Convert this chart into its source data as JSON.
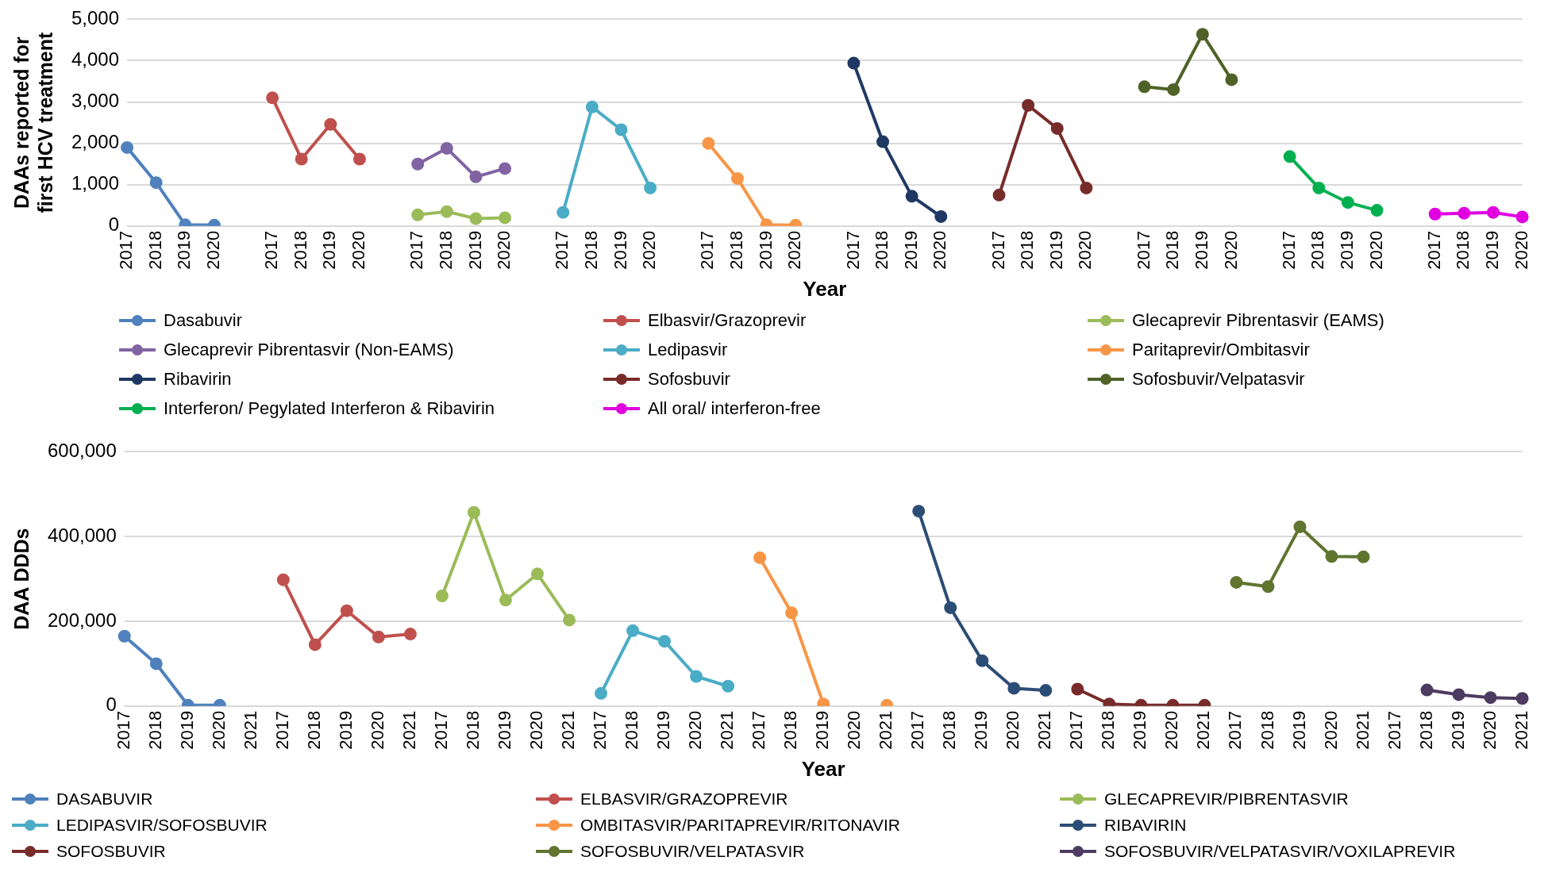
{
  "chart_data": [
    {
      "type": "line",
      "xlabel": "Year",
      "ylabel": "DAAs reported for first HCV treatment",
      "marker": "circle",
      "grid": "y",
      "legend": "bottom",
      "categories": [
        "2017",
        "2018",
        "2019",
        "2020",
        null,
        "2017",
        "2018",
        "2019",
        "2020",
        null,
        "2017",
        "2018",
        "2019",
        "2020",
        null,
        "2017",
        "2018",
        "2019",
        "2020",
        null,
        "2017",
        "2018",
        "2019",
        "2020",
        null,
        "2017",
        "2018",
        "2019",
        "2020",
        null,
        "2017",
        "2018",
        "2019",
        "2020",
        null,
        "2017",
        "2018",
        "2019",
        "2020",
        null,
        "2017",
        "2018",
        "2019",
        "2020",
        null,
        "2017",
        "2018",
        "2019",
        "2020"
      ],
      "ylim": [
        0,
        5000
      ],
      "yticks": [
        0,
        {
          "value": 1000,
          "label": "1,000"
        },
        {
          "value": 2000,
          "label": "2,000"
        },
        {
          "value": 3000,
          "label": "3,000"
        },
        {
          "value": 4000,
          "label": "4,000"
        },
        {
          "value": 5000,
          "label": "5,000"
        }
      ],
      "series": [
        {
          "name": "Dasabuvir",
          "color": "#4f81bd",
          "values": [
            1900,
            1050,
            30,
            20,
            null,
            null,
            null,
            null,
            null,
            null,
            null,
            null,
            null,
            null,
            null,
            null,
            null,
            null,
            null,
            null,
            null,
            null,
            null,
            null,
            null,
            null,
            null,
            null,
            null,
            null,
            null,
            null,
            null,
            null,
            null,
            null,
            null,
            null,
            null,
            null,
            null,
            null,
            null,
            null,
            null,
            null,
            null,
            null,
            null
          ]
        },
        {
          "name": "Elbasvir/Grazoprevir",
          "color": "#c0504d",
          "values": [
            null,
            null,
            null,
            null,
            null,
            3100,
            1620,
            2460,
            1620,
            null,
            null,
            null,
            null,
            null,
            null,
            null,
            null,
            null,
            null,
            null,
            null,
            null,
            null,
            null,
            null,
            null,
            null,
            null,
            null,
            null,
            null,
            null,
            null,
            null,
            null,
            null,
            null,
            null,
            null,
            null,
            null,
            null,
            null,
            null,
            null,
            null,
            null,
            null,
            null
          ]
        },
        {
          "name": "Glecaprevir Pibrentasvir (EAMS)",
          "color": "#9bbb59",
          "values": [
            null,
            null,
            null,
            null,
            null,
            null,
            null,
            null,
            null,
            null,
            270,
            350,
            180,
            200,
            null,
            null,
            null,
            null,
            null,
            null,
            null,
            null,
            null,
            null,
            null,
            null,
            null,
            null,
            null,
            null,
            null,
            null,
            null,
            null,
            null,
            null,
            null,
            null,
            null,
            null,
            null,
            null,
            null,
            null,
            null,
            null,
            null,
            null,
            null
          ]
        },
        {
          "name": "Glecaprevir Pibrentasvir (Non-EAMS)",
          "color": "#8064a2",
          "values": [
            null,
            null,
            null,
            null,
            null,
            null,
            null,
            null,
            null,
            null,
            1500,
            1880,
            1190,
            1390,
            null,
            null,
            null,
            null,
            null,
            null,
            null,
            null,
            null,
            null,
            null,
            null,
            null,
            null,
            null,
            null,
            null,
            null,
            null,
            null,
            null,
            null,
            null,
            null,
            null,
            null,
            null,
            null,
            null,
            null,
            null,
            null,
            null,
            null,
            null
          ]
        },
        {
          "name": "Ledipasvir",
          "color": "#4bacc6",
          "values": [
            null,
            null,
            null,
            null,
            null,
            null,
            null,
            null,
            null,
            null,
            null,
            null,
            null,
            null,
            null,
            330,
            2880,
            2330,
            920,
            null,
            null,
            null,
            null,
            null,
            null,
            null,
            null,
            null,
            null,
            null,
            null,
            null,
            null,
            null,
            null,
            null,
            null,
            null,
            null,
            null,
            null,
            null,
            null,
            null,
            null,
            null,
            null,
            null,
            null
          ]
        },
        {
          "name": "Paritaprevir/Ombitasvir",
          "color": "#f79646",
          "values": [
            null,
            null,
            null,
            null,
            null,
            null,
            null,
            null,
            null,
            null,
            null,
            null,
            null,
            null,
            null,
            null,
            null,
            null,
            null,
            null,
            2000,
            1150,
            30,
            20,
            null,
            null,
            null,
            null,
            null,
            null,
            null,
            null,
            null,
            null,
            null,
            null,
            null,
            null,
            null,
            null,
            null,
            null,
            null,
            null,
            null,
            null,
            null,
            null,
            null
          ]
        },
        {
          "name": "Ribavirin",
          "color": "#1f3864",
          "values": [
            null,
            null,
            null,
            null,
            null,
            null,
            null,
            null,
            null,
            null,
            null,
            null,
            null,
            null,
            null,
            null,
            null,
            null,
            null,
            null,
            null,
            null,
            null,
            null,
            null,
            3940,
            2040,
            720,
            230,
            null,
            null,
            null,
            null,
            null,
            null,
            null,
            null,
            null,
            null,
            null,
            null,
            null,
            null,
            null,
            null,
            null,
            null,
            null,
            null
          ]
        },
        {
          "name": "Sofosbuvir",
          "color": "#772c2a",
          "values": [
            null,
            null,
            null,
            null,
            null,
            null,
            null,
            null,
            null,
            null,
            null,
            null,
            null,
            null,
            null,
            null,
            null,
            null,
            null,
            null,
            null,
            null,
            null,
            null,
            null,
            null,
            null,
            null,
            null,
            null,
            750,
            2920,
            2360,
            920,
            null,
            null,
            null,
            null,
            null,
            null,
            null,
            null,
            null,
            null,
            null,
            null,
            null,
            null,
            null
          ]
        },
        {
          "name": "Sofosbuvir/Velpatasvir",
          "color": "#4f6228",
          "values": [
            null,
            null,
            null,
            null,
            null,
            null,
            null,
            null,
            null,
            null,
            null,
            null,
            null,
            null,
            null,
            null,
            null,
            null,
            null,
            null,
            null,
            null,
            null,
            null,
            null,
            null,
            null,
            null,
            null,
            null,
            null,
            null,
            null,
            null,
            null,
            3370,
            3300,
            4640,
            3540,
            null,
            null,
            null,
            null,
            null,
            null,
            null,
            null,
            null,
            null
          ]
        },
        {
          "name": "Interferon/ Pegylated Interferon & Ribavirin",
          "color": "#00b050",
          "values": [
            null,
            null,
            null,
            null,
            null,
            null,
            null,
            null,
            null,
            null,
            null,
            null,
            null,
            null,
            null,
            null,
            null,
            null,
            null,
            null,
            null,
            null,
            null,
            null,
            null,
            null,
            null,
            null,
            null,
            null,
            null,
            null,
            null,
            null,
            null,
            null,
            null,
            null,
            null,
            null,
            1680,
            920,
            570,
            380,
            null,
            null,
            null,
            null,
            null
          ]
        },
        {
          "name": "All oral/ interferon-free",
          "color": "#e000e0",
          "values": [
            null,
            null,
            null,
            null,
            null,
            null,
            null,
            null,
            null,
            null,
            null,
            null,
            null,
            null,
            null,
            null,
            null,
            null,
            null,
            null,
            null,
            null,
            null,
            null,
            null,
            null,
            null,
            null,
            null,
            null,
            null,
            null,
            null,
            null,
            null,
            null,
            null,
            null,
            null,
            null,
            null,
            null,
            null,
            null,
            null,
            290,
            310,
            330,
            220
          ]
        }
      ]
    },
    {
      "type": "line",
      "xlabel": "Year",
      "ylabel": "DAA DDDs",
      "marker": "circle",
      "grid": "y",
      "legend": "bottom",
      "categories": [
        "2017",
        "2018",
        "2019",
        "2020",
        "2021",
        "2017",
        "2018",
        "2019",
        "2020",
        "2021",
        "2017",
        "2018",
        "2019",
        "2020",
        "2021",
        "2017",
        "2018",
        "2019",
        "2020",
        "2021",
        "2017",
        "2018",
        "2019",
        "2020",
        "2021",
        "2017",
        "2018",
        "2019",
        "2020",
        "2021",
        "2017",
        "2018",
        "2019",
        "2020",
        "2021",
        "2017",
        "2018",
        "2019",
        "2020",
        "2021",
        "2017",
        "2018",
        "2019",
        "2020",
        "2021"
      ],
      "ylim": [
        0,
        600000
      ],
      "yticks": [
        0,
        {
          "value": 200000,
          "label": "200,000"
        },
        {
          "value": 400000,
          "label": "400,000"
        },
        {
          "value": 600000,
          "label": "600,000"
        }
      ],
      "series": [
        {
          "name": "DASABUVIR",
          "color": "#4f81bd",
          "values": [
            165000,
            100000,
            2000,
            2000,
            null,
            null,
            null,
            null,
            null,
            null,
            null,
            null,
            null,
            null,
            null,
            null,
            null,
            null,
            null,
            null,
            null,
            null,
            null,
            null,
            null,
            null,
            null,
            null,
            null,
            null,
            null,
            null,
            null,
            null,
            null,
            null,
            null,
            null,
            null,
            null,
            null,
            null,
            null,
            null,
            null
          ]
        },
        {
          "name": "ELBASVIR/GRAZOPREVIR",
          "color": "#c0504d",
          "values": [
            null,
            null,
            null,
            null,
            null,
            298000,
            145000,
            225000,
            163000,
            170000,
            null,
            null,
            null,
            null,
            null,
            null,
            null,
            null,
            null,
            null,
            null,
            null,
            null,
            null,
            null,
            null,
            null,
            null,
            null,
            null,
            null,
            null,
            null,
            null,
            null,
            null,
            null,
            null,
            null,
            null,
            null,
            null,
            null,
            null,
            null
          ]
        },
        {
          "name": "GLECAPREVIR/PIBRENTASVIR",
          "color": "#9bbb59",
          "values": [
            null,
            null,
            null,
            null,
            null,
            null,
            null,
            null,
            null,
            null,
            260000,
            457000,
            250000,
            312000,
            203000,
            null,
            null,
            null,
            null,
            null,
            null,
            null,
            null,
            null,
            null,
            null,
            null,
            null,
            null,
            null,
            null,
            null,
            null,
            null,
            null,
            null,
            null,
            null,
            null,
            null,
            null,
            null,
            null,
            null,
            null
          ]
        },
        {
          "name": "LEDIPASVIR/SOFOSBUVIR",
          "color": "#4bacc6",
          "values": [
            null,
            null,
            null,
            null,
            null,
            null,
            null,
            null,
            null,
            null,
            null,
            null,
            null,
            null,
            null,
            30000,
            178000,
            153000,
            70000,
            47000,
            null,
            null,
            null,
            null,
            null,
            null,
            null,
            null,
            null,
            null,
            null,
            null,
            null,
            null,
            null,
            null,
            null,
            null,
            null,
            null,
            null,
            null,
            null,
            null,
            null
          ]
        },
        {
          "name": "OMBITASVIR/PARITAPREVIR/RITONAVIR",
          "color": "#f79646",
          "values": [
            null,
            null,
            null,
            null,
            null,
            null,
            null,
            null,
            null,
            null,
            null,
            null,
            null,
            null,
            null,
            null,
            null,
            null,
            null,
            null,
            350000,
            220000,
            5000,
            null,
            2000,
            null,
            null,
            null,
            null,
            null,
            null,
            null,
            null,
            null,
            null,
            null,
            null,
            null,
            null,
            null,
            null,
            null,
            null,
            null,
            null
          ]
        },
        {
          "name": "RIBAVIRIN",
          "color": "#2c4d75",
          "values": [
            null,
            null,
            null,
            null,
            null,
            null,
            null,
            null,
            null,
            null,
            null,
            null,
            null,
            null,
            null,
            null,
            null,
            null,
            null,
            null,
            null,
            null,
            null,
            null,
            null,
            460000,
            232000,
            107000,
            42000,
            37000,
            null,
            null,
            null,
            null,
            null,
            null,
            null,
            null,
            null,
            null,
            null,
            null,
            null,
            null,
            null
          ]
        },
        {
          "name": "SOFOSBUVIR",
          "color": "#772c2a",
          "values": [
            null,
            null,
            null,
            null,
            null,
            null,
            null,
            null,
            null,
            null,
            null,
            null,
            null,
            null,
            null,
            null,
            null,
            null,
            null,
            null,
            null,
            null,
            null,
            null,
            null,
            null,
            null,
            null,
            null,
            null,
            40000,
            5000,
            2000,
            2000,
            2000,
            null,
            null,
            null,
            null,
            null,
            null,
            null,
            null,
            null,
            null
          ]
        },
        {
          "name": "SOFOSBUVIR/VELPATASVIR",
          "color": "#5f7530",
          "values": [
            null,
            null,
            null,
            null,
            null,
            null,
            null,
            null,
            null,
            null,
            null,
            null,
            null,
            null,
            null,
            null,
            null,
            null,
            null,
            null,
            null,
            null,
            null,
            null,
            null,
            null,
            null,
            null,
            null,
            null,
            null,
            null,
            null,
            null,
            null,
            292000,
            282000,
            423000,
            353000,
            352000,
            null,
            null,
            null,
            null,
            null
          ]
        },
        {
          "name": "SOFOSBUVIR/VELPATASVIR/VOXILAPREVIR",
          "color": "#4d3b62",
          "values": [
            null,
            null,
            null,
            null,
            null,
            null,
            null,
            null,
            null,
            null,
            null,
            null,
            null,
            null,
            null,
            null,
            null,
            null,
            null,
            null,
            null,
            null,
            null,
            null,
            null,
            null,
            null,
            null,
            null,
            null,
            null,
            null,
            null,
            null,
            null,
            null,
            null,
            null,
            null,
            null,
            null,
            38000,
            27000,
            20000,
            18000
          ]
        }
      ]
    }
  ]
}
